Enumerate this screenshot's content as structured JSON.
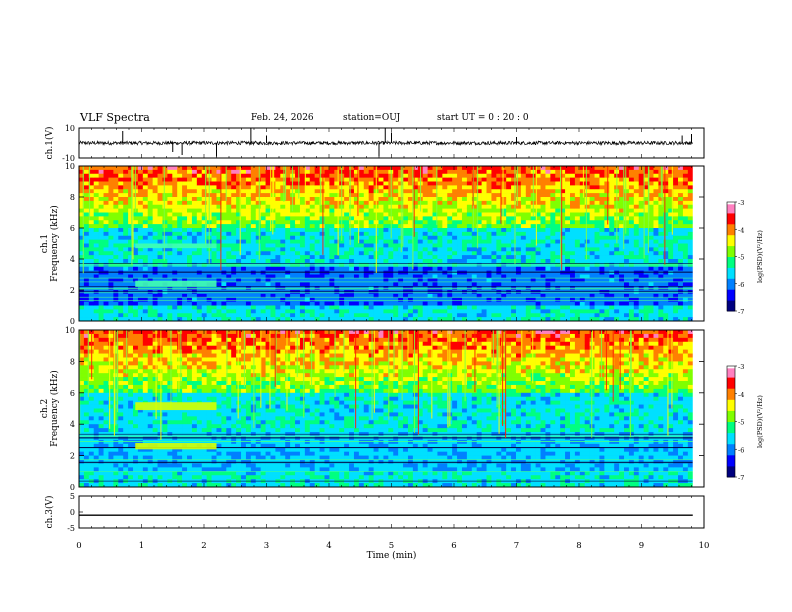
{
  "header": {
    "title": "VLF Spectra",
    "date": "Feb. 24, 2026",
    "station": "station=OUJ",
    "start": "start  UT =   0 : 20 : 0"
  },
  "chart_data": [
    {
      "type": "line",
      "name": "ch1-waveform",
      "ylabel": "ch.1(V)",
      "ylim": [
        -10,
        10
      ],
      "yticks": [
        "10",
        "-10"
      ],
      "xlim": [
        0,
        10
      ],
      "baseline": 0,
      "spikes": [
        {
          "t": 0.7,
          "v": 8
        },
        {
          "t": 1.5,
          "v": -6
        },
        {
          "t": 1.65,
          "v": -8
        },
        {
          "t": 2.2,
          "v": -9
        },
        {
          "t": 2.75,
          "v": 10
        },
        {
          "t": 3.0,
          "v": 5
        },
        {
          "t": 4.8,
          "v": -9
        },
        {
          "t": 4.9,
          "v": 10
        },
        {
          "t": 5.0,
          "v": 7
        },
        {
          "t": 7.0,
          "v": 4
        },
        {
          "t": 9.65,
          "v": 5
        },
        {
          "t": 9.8,
          "v": 6
        }
      ]
    },
    {
      "type": "heatmap",
      "name": "ch1-spectrogram",
      "ylabel": "ch.1\nFrequency (kHz)",
      "ylim": [
        0,
        10
      ],
      "yticks": [
        "0",
        "2",
        "4",
        "6",
        "8",
        "10"
      ],
      "xlim": [
        0,
        10
      ],
      "colorbar": {
        "label": "log(PSD)(V²/Hz)",
        "range": [
          -7,
          -3
        ],
        "ticks": [
          "-3",
          "-4",
          "-5",
          "-6",
          "-7"
        ]
      },
      "bands": [
        {
          "t0": 0.9,
          "t1": 2.2,
          "f0": 2.2,
          "f1": 2.6
        },
        {
          "t0": 0.9,
          "t1": 2.2,
          "f0": 4.7,
          "f1": 5.0
        }
      ]
    },
    {
      "type": "heatmap",
      "name": "ch2-spectrogram",
      "ylabel": "ch.2\nFrequency (kHz)",
      "ylim": [
        0,
        10
      ],
      "yticks": [
        "0",
        "2",
        "4",
        "6",
        "8",
        "10"
      ],
      "xlim": [
        0,
        10
      ],
      "colorbar": {
        "label": "log(PSD)(V²/Hz)",
        "range": [
          -7,
          -3
        ],
        "ticks": [
          "-3",
          "-4",
          "-5",
          "-6",
          "-7"
        ]
      },
      "bands": [
        {
          "t0": 0.9,
          "t1": 2.2,
          "f0": 2.4,
          "f1": 2.8
        },
        {
          "t0": 0.9,
          "t1": 2.2,
          "f0": 4.9,
          "f1": 5.4
        }
      ]
    },
    {
      "type": "line",
      "name": "ch3-waveform",
      "ylabel": "ch.3(V)",
      "ylim": [
        -5,
        5
      ],
      "yticks": [
        "5",
        "0",
        "-5"
      ],
      "xlim": [
        0,
        10
      ],
      "value": -1
    }
  ],
  "xaxis": {
    "label": "Time  (min)",
    "ticks": [
      "0",
      "1",
      "2",
      "3",
      "4",
      "5",
      "6",
      "7",
      "8",
      "9",
      "10"
    ]
  },
  "colors": {
    "colormap": [
      "#00007f",
      "#0000ff",
      "#0080ff",
      "#00e0ff",
      "#00ff80",
      "#80ff00",
      "#ffff00",
      "#ff8000",
      "#ff0000",
      "#ff80c0",
      "#ffffff"
    ]
  }
}
